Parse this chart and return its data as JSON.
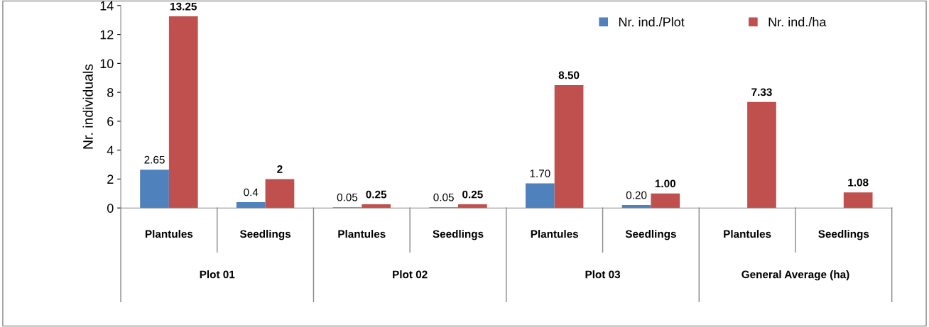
{
  "chart_data": {
    "type": "bar",
    "ylabel": "Nr. individuals",
    "categories": [
      "Plantules",
      "Seedlings",
      "Plantules",
      "Seedlings",
      "Plantules",
      "Seedlings",
      "Plantules",
      "Seedlings"
    ],
    "annotations": [
      "Plot 01",
      "Plot 02",
      "Plot 03",
      "General Average (ha)"
    ],
    "series": [
      {
        "name": "Nr. ind./Plot",
        "color": "#4f81bd",
        "values": [
          2.65,
          0.4,
          0.05,
          0.05,
          1.7,
          0.2,
          null,
          null
        ],
        "value_labels": [
          "2.65",
          "0.4",
          "0.05",
          "0.05",
          "1.70",
          "0.20",
          null,
          null
        ]
      },
      {
        "name": "Nr. ind./ha",
        "color": "#c0504d",
        "values": [
          13.25,
          2,
          0.25,
          0.25,
          8.5,
          1.0,
          7.33,
          1.08
        ],
        "value_labels": [
          "13.25",
          "2",
          "0.25",
          "0.25",
          "8.50",
          "1.00",
          "7.33",
          "1.08"
        ]
      }
    ],
    "ylim": [
      0,
      14
    ],
    "yticks": [
      0,
      2,
      4,
      6,
      8,
      10,
      12,
      14
    ],
    "grid": false,
    "legend": "top right"
  }
}
